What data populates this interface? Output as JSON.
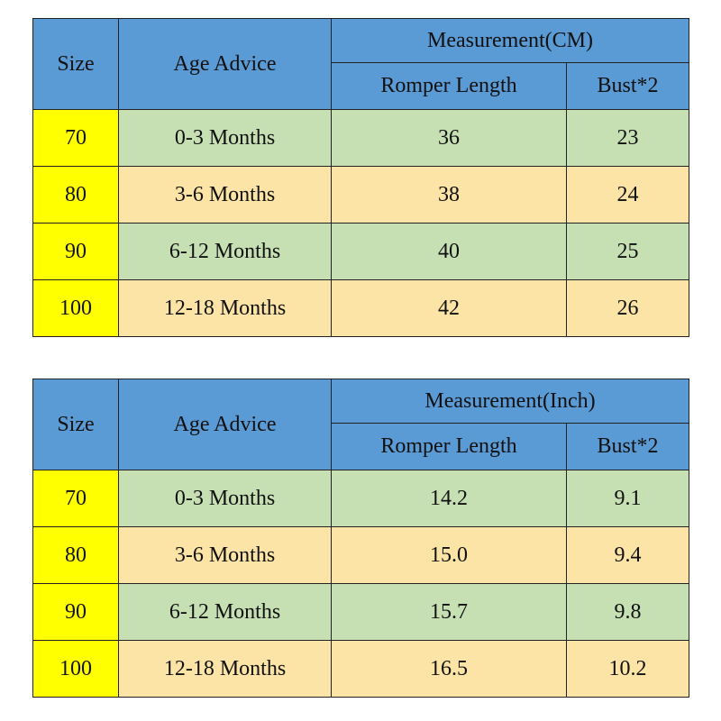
{
  "tables": [
    {
      "headers": {
        "size": "Size",
        "age": "Age Advice",
        "group": "Measurement(CM)",
        "romper": "Romper Length",
        "bust": "Bust*2"
      },
      "rows": [
        {
          "size": "70",
          "age": "0-3 Months",
          "romper": "36",
          "bust": "23"
        },
        {
          "size": "80",
          "age": "3-6 Months",
          "romper": "38",
          "bust": "24"
        },
        {
          "size": "90",
          "age": "6-12 Months",
          "romper": "40",
          "bust": "25"
        },
        {
          "size": "100",
          "age": "12-18 Months",
          "romper": "42",
          "bust": "26"
        }
      ]
    },
    {
      "headers": {
        "size": "Size",
        "age": "Age Advice",
        "group": "Measurement(Inch)",
        "romper": "Romper Length",
        "bust": "Bust*2"
      },
      "rows": [
        {
          "size": "70",
          "age": "0-3 Months",
          "romper": "14.2",
          "bust": "9.1"
        },
        {
          "size": "80",
          "age": "3-6 Months",
          "romper": "15.0",
          "bust": "9.4"
        },
        {
          "size": "90",
          "age": "6-12 Months",
          "romper": "15.7",
          "bust": "9.8"
        },
        {
          "size": "100",
          "age": "12-18 Months",
          "romper": "16.5",
          "bust": "10.2"
        }
      ]
    }
  ],
  "colors": {
    "header": "#5b9bd5",
    "size_column": "#ffff00",
    "row_green": "#c6e0b4",
    "row_orange": "#fce4a6",
    "border": "#222222"
  }
}
